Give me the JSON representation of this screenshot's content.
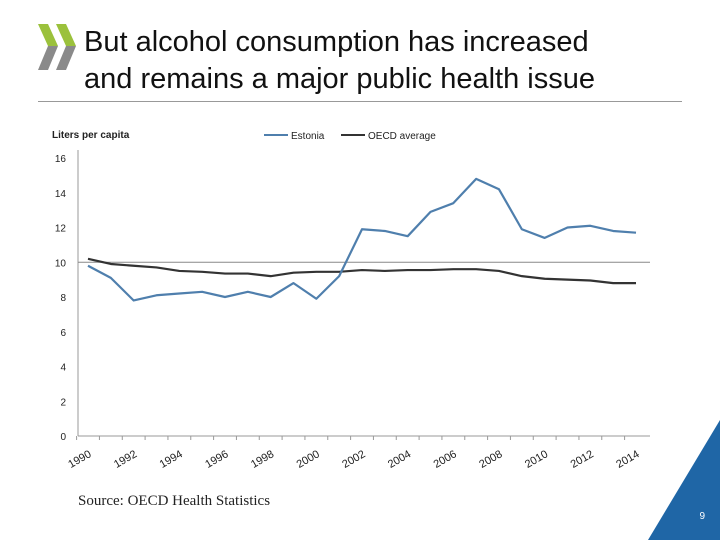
{
  "slide": {
    "title_line1": "But alcohol consumption has increased",
    "title_line2": "and remains a major public health issue",
    "source": "Source: OECD Health Statistics",
    "page_number": "9",
    "colors": {
      "logo_green": "#9bc13c",
      "logo_gray": "#8a8a8a",
      "corner_blue": "#1f66a6"
    }
  },
  "chart_data": {
    "type": "line",
    "ylabel": "Liters per capita",
    "ylim": [
      0,
      16
    ],
    "yticks": [
      "0",
      "2",
      "4",
      "6",
      "8",
      "10",
      "12",
      "14",
      "16"
    ],
    "xticks": [
      "1990",
      "1992",
      "1994",
      "1996",
      "1998",
      "2000",
      "2002",
      "2004",
      "2006",
      "2008",
      "2010",
      "2012",
      "2014"
    ],
    "x": [
      1990,
      1991,
      1992,
      1993,
      1994,
      1995,
      1996,
      1997,
      1998,
      1999,
      2000,
      2001,
      2002,
      2003,
      2004,
      2005,
      2006,
      2007,
      2008,
      2009,
      2010,
      2011,
      2012,
      2013,
      2014
    ],
    "legend_position": "top",
    "grid": "only at 10",
    "series": [
      {
        "name": "Estonia",
        "color": "#4f7fad",
        "values": [
          9.8,
          9.1,
          7.8,
          8.1,
          8.2,
          8.3,
          8.0,
          8.3,
          8.0,
          8.8,
          7.9,
          9.2,
          11.9,
          11.8,
          11.5,
          12.9,
          13.4,
          14.8,
          14.2,
          11.9,
          11.4,
          12.0,
          12.1,
          11.8,
          11.7
        ]
      },
      {
        "name": "OECD average",
        "color": "#333333",
        "values": [
          10.2,
          9.9,
          9.8,
          9.7,
          9.5,
          9.45,
          9.35,
          9.35,
          9.2,
          9.4,
          9.45,
          9.45,
          9.55,
          9.5,
          9.55,
          9.55,
          9.6,
          9.6,
          9.5,
          9.2,
          9.05,
          9.0,
          8.95,
          8.8,
          8.8
        ]
      }
    ]
  }
}
